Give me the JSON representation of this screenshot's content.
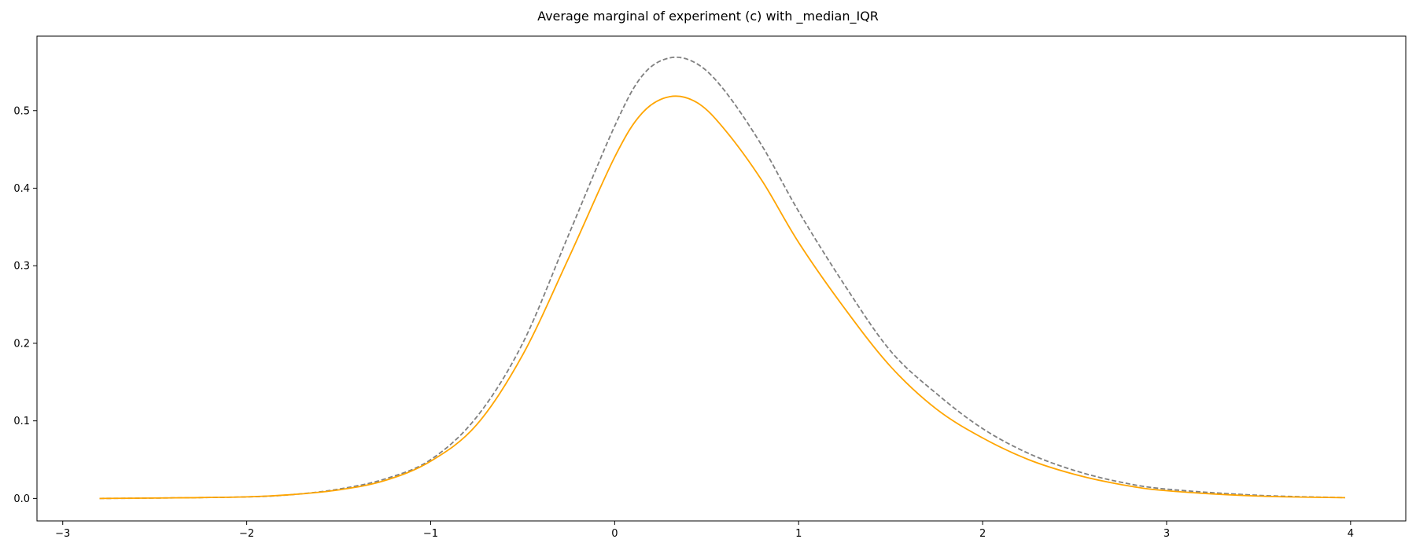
{
  "chart_data": {
    "type": "line",
    "title": "Average marginal of experiment (c) with _median_IQR",
    "xlabel": "",
    "ylabel": "",
    "xlim": [
      -3.14,
      4.3
    ],
    "ylim": [
      -0.029,
      0.596
    ],
    "xticks": [
      -3,
      -2,
      -1,
      0,
      1,
      2,
      3,
      4
    ],
    "xtick_labels": [
      "−3",
      "−2",
      "−1",
      "0",
      "1",
      "2",
      "3",
      "4"
    ],
    "yticks": [
      0.0,
      0.1,
      0.2,
      0.3,
      0.4,
      0.5
    ],
    "ytick_labels": [
      "0.0",
      "0.1",
      "0.2",
      "0.3",
      "0.4",
      "0.5"
    ],
    "grid": false,
    "series": [
      {
        "color": "#808080",
        "style": "dashed",
        "x": [
          -2.8,
          -2.5,
          -2.0,
          -1.75,
          -1.5,
          -1.25,
          -1.0,
          -0.75,
          -0.5,
          -0.25,
          0.0,
          0.15,
          0.3,
          0.45,
          0.6,
          0.8,
          1.0,
          1.25,
          1.5,
          1.75,
          2.0,
          2.25,
          2.5,
          2.75,
          3.0,
          3.5,
          3.97
        ],
        "y": [
          0.0,
          0.0005,
          0.002,
          0.005,
          0.012,
          0.025,
          0.05,
          0.105,
          0.2,
          0.34,
          0.48,
          0.545,
          0.568,
          0.56,
          0.525,
          0.455,
          0.37,
          0.275,
          0.19,
          0.135,
          0.09,
          0.058,
          0.036,
          0.021,
          0.012,
          0.004,
          0.001
        ]
      },
      {
        "color": "#ffa500",
        "style": "solid",
        "x": [
          -2.8,
          -2.5,
          -2.0,
          -1.75,
          -1.5,
          -1.25,
          -1.0,
          -0.75,
          -0.5,
          -0.25,
          0.0,
          0.15,
          0.3,
          0.45,
          0.6,
          0.8,
          1.0,
          1.25,
          1.5,
          1.75,
          2.0,
          2.25,
          2.5,
          2.75,
          3.0,
          3.5,
          3.97
        ],
        "y": [
          0.0,
          0.0005,
          0.002,
          0.005,
          0.011,
          0.023,
          0.048,
          0.095,
          0.185,
          0.31,
          0.44,
          0.497,
          0.518,
          0.51,
          0.475,
          0.41,
          0.33,
          0.245,
          0.17,
          0.115,
          0.078,
          0.05,
          0.031,
          0.018,
          0.01,
          0.003,
          0.001
        ]
      }
    ]
  }
}
